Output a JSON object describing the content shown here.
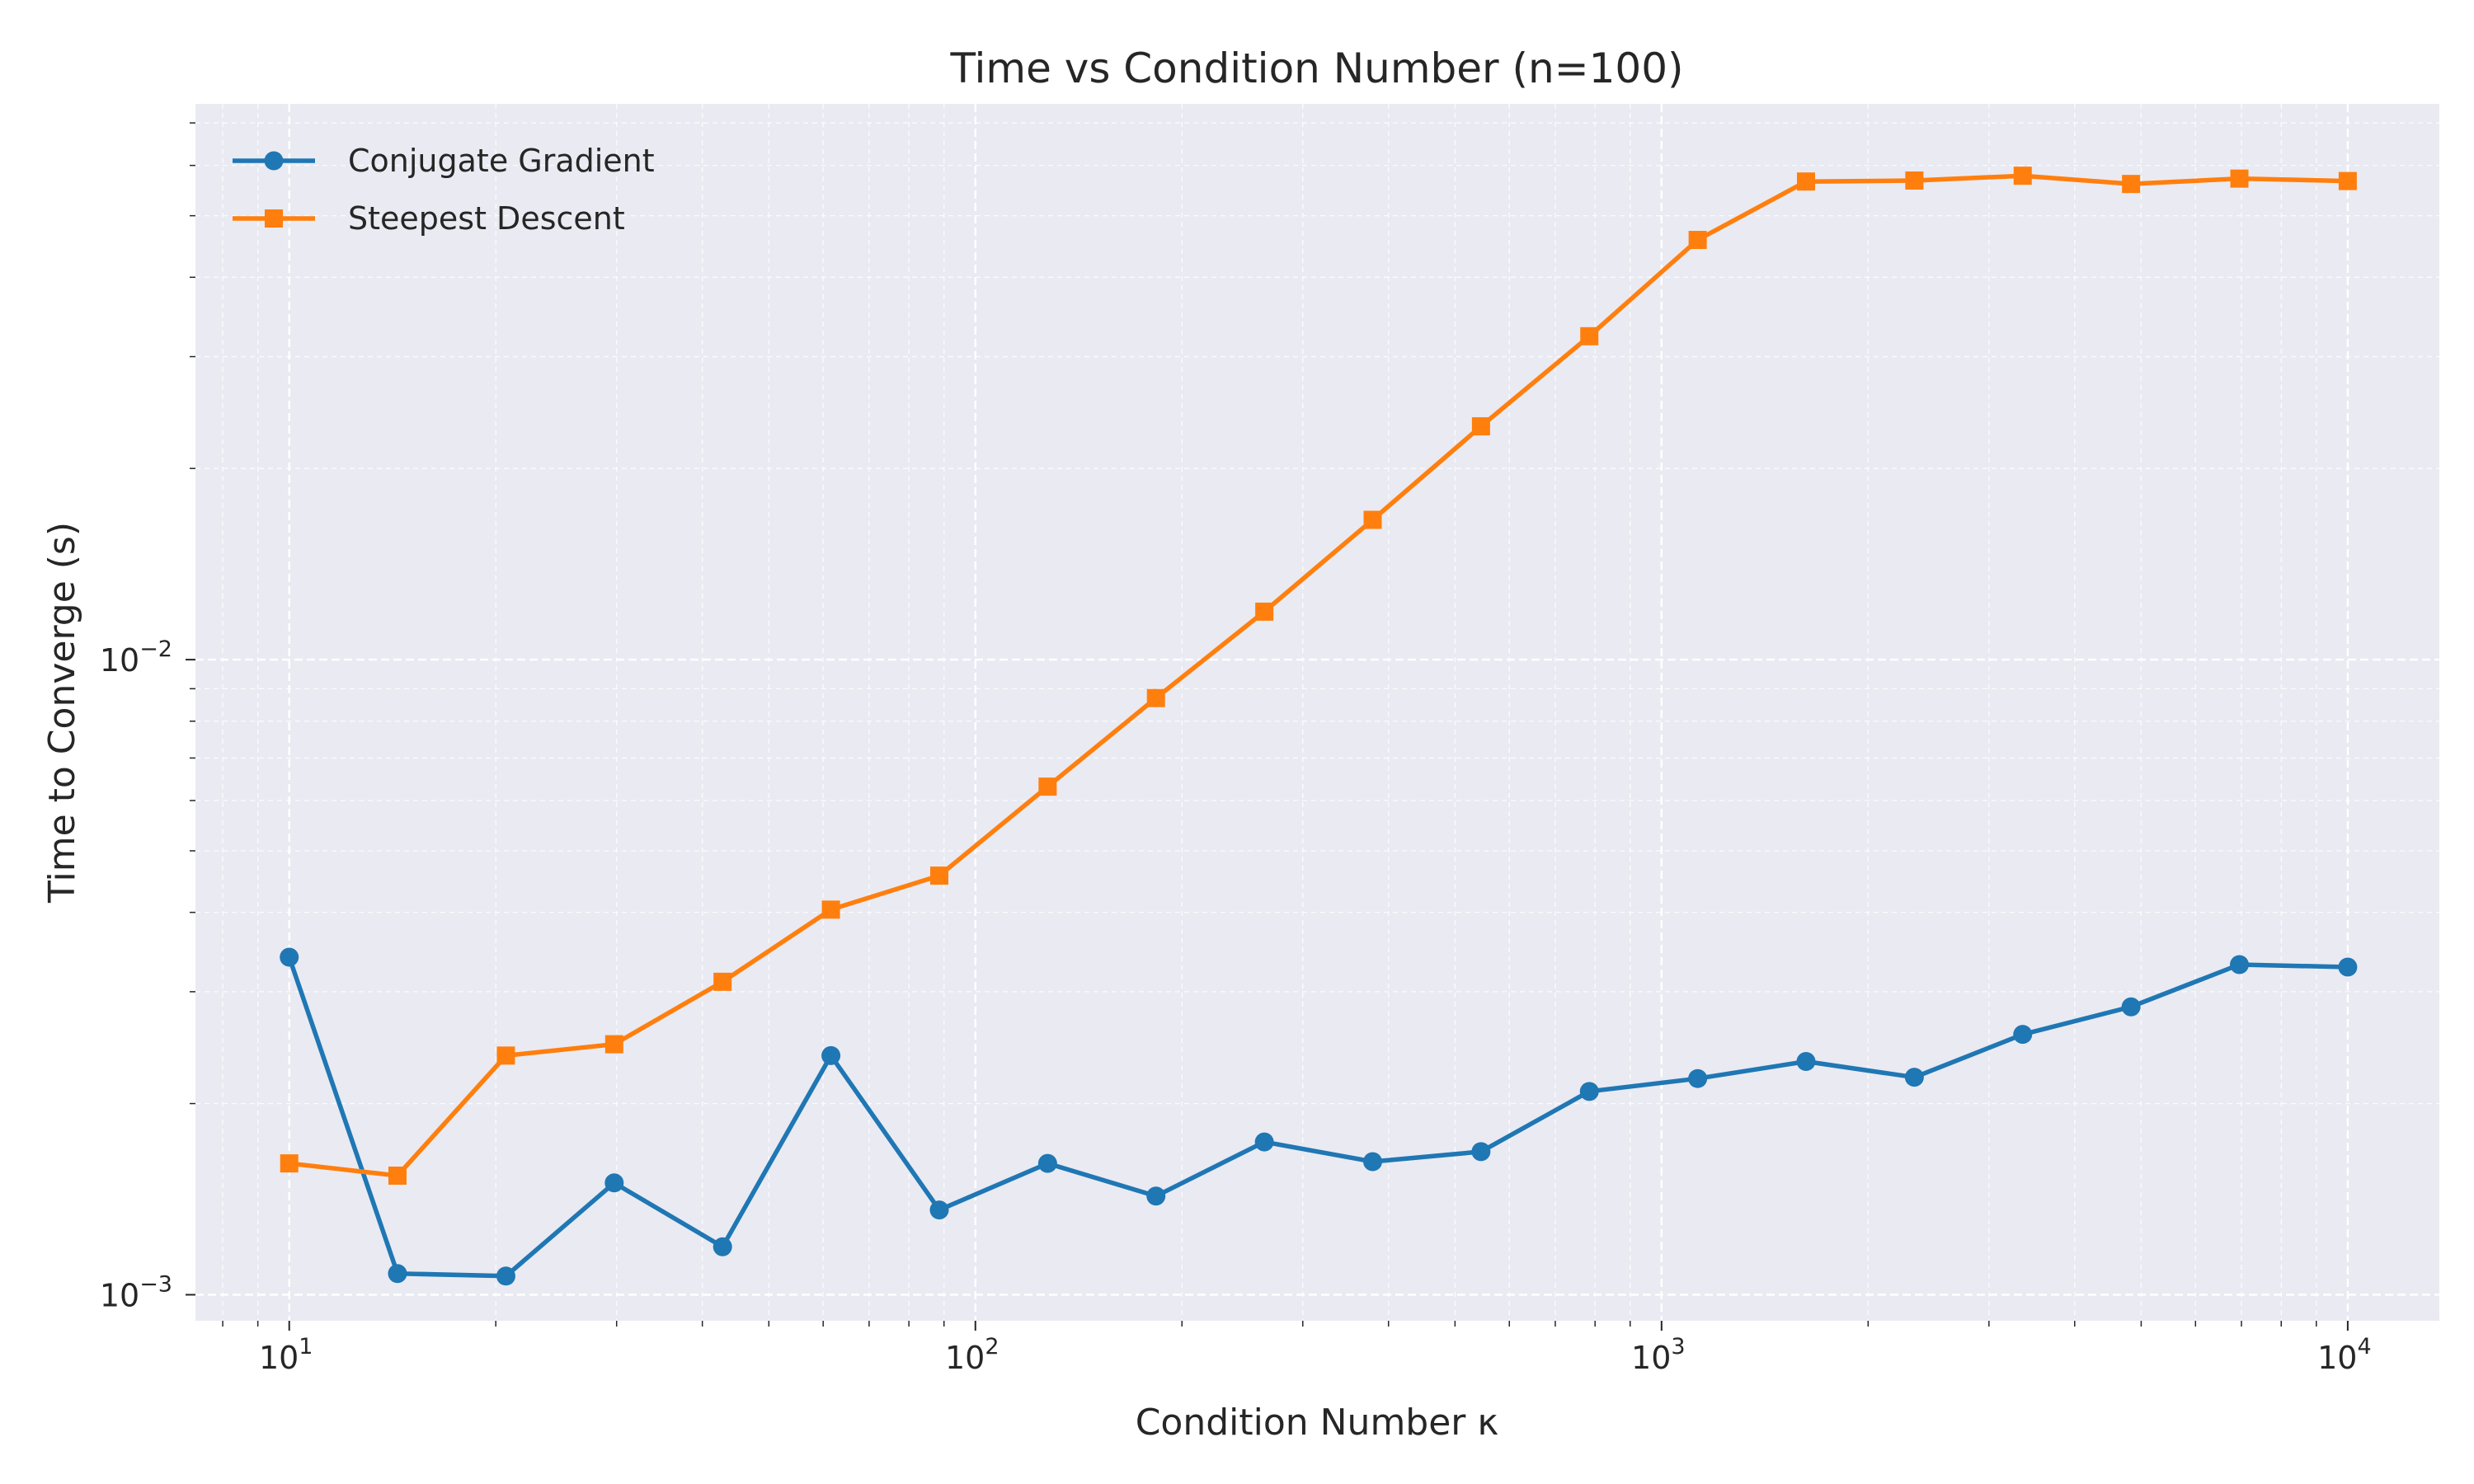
{
  "chart_data": {
    "type": "line",
    "title": "Time vs Condition Number (n=100)",
    "xlabel": "Condition Number κ",
    "ylabel": "Time to Converge (s)",
    "xscale": "log",
    "yscale": "log",
    "xlim": [
      7.3,
      13600
    ],
    "ylim": [
      0.00091,
      0.075
    ],
    "grid": true,
    "legend_position": "top-left",
    "x_ticks": [
      {
        "base": "10",
        "exp": "1",
        "value": 10
      },
      {
        "base": "10",
        "exp": "2",
        "value": 100
      },
      {
        "base": "10",
        "exp": "3",
        "value": 1000
      },
      {
        "base": "10",
        "exp": "4",
        "value": 10000
      }
    ],
    "y_ticks": [
      {
        "base": "10",
        "exp": "−3",
        "value": 0.001
      },
      {
        "base": "10",
        "exp": "−2",
        "value": 0.01
      }
    ],
    "x": [
      10,
      14.38,
      20.69,
      29.76,
      42.81,
      61.58,
      88.59,
      127.43,
      183.3,
      263.67,
      379.28,
      545.56,
      784.76,
      1128.84,
      1623.78,
      2335.72,
      3359.82,
      4832.93,
      6951.93,
      10000
    ],
    "series": [
      {
        "name": "Conjugate Gradient",
        "color": "#1f77b4",
        "marker": "circle",
        "values": [
          0.0034,
          0.00108,
          0.00107,
          0.0015,
          0.00119,
          0.00238,
          0.00136,
          0.00161,
          0.00143,
          0.00174,
          0.00162,
          0.00168,
          0.00209,
          0.00219,
          0.00233,
          0.0022,
          0.00257,
          0.00284,
          0.00331,
          0.00328
        ]
      },
      {
        "name": "Steepest Descent",
        "color": "#ff7f0e",
        "marker": "square",
        "values": [
          0.00161,
          0.00154,
          0.00238,
          0.00248,
          0.00311,
          0.00404,
          0.00457,
          0.00631,
          0.0087,
          0.0119,
          0.0166,
          0.0233,
          0.0323,
          0.0458,
          0.0566,
          0.0568,
          0.0578,
          0.0561,
          0.0572,
          0.0567
        ]
      }
    ]
  }
}
